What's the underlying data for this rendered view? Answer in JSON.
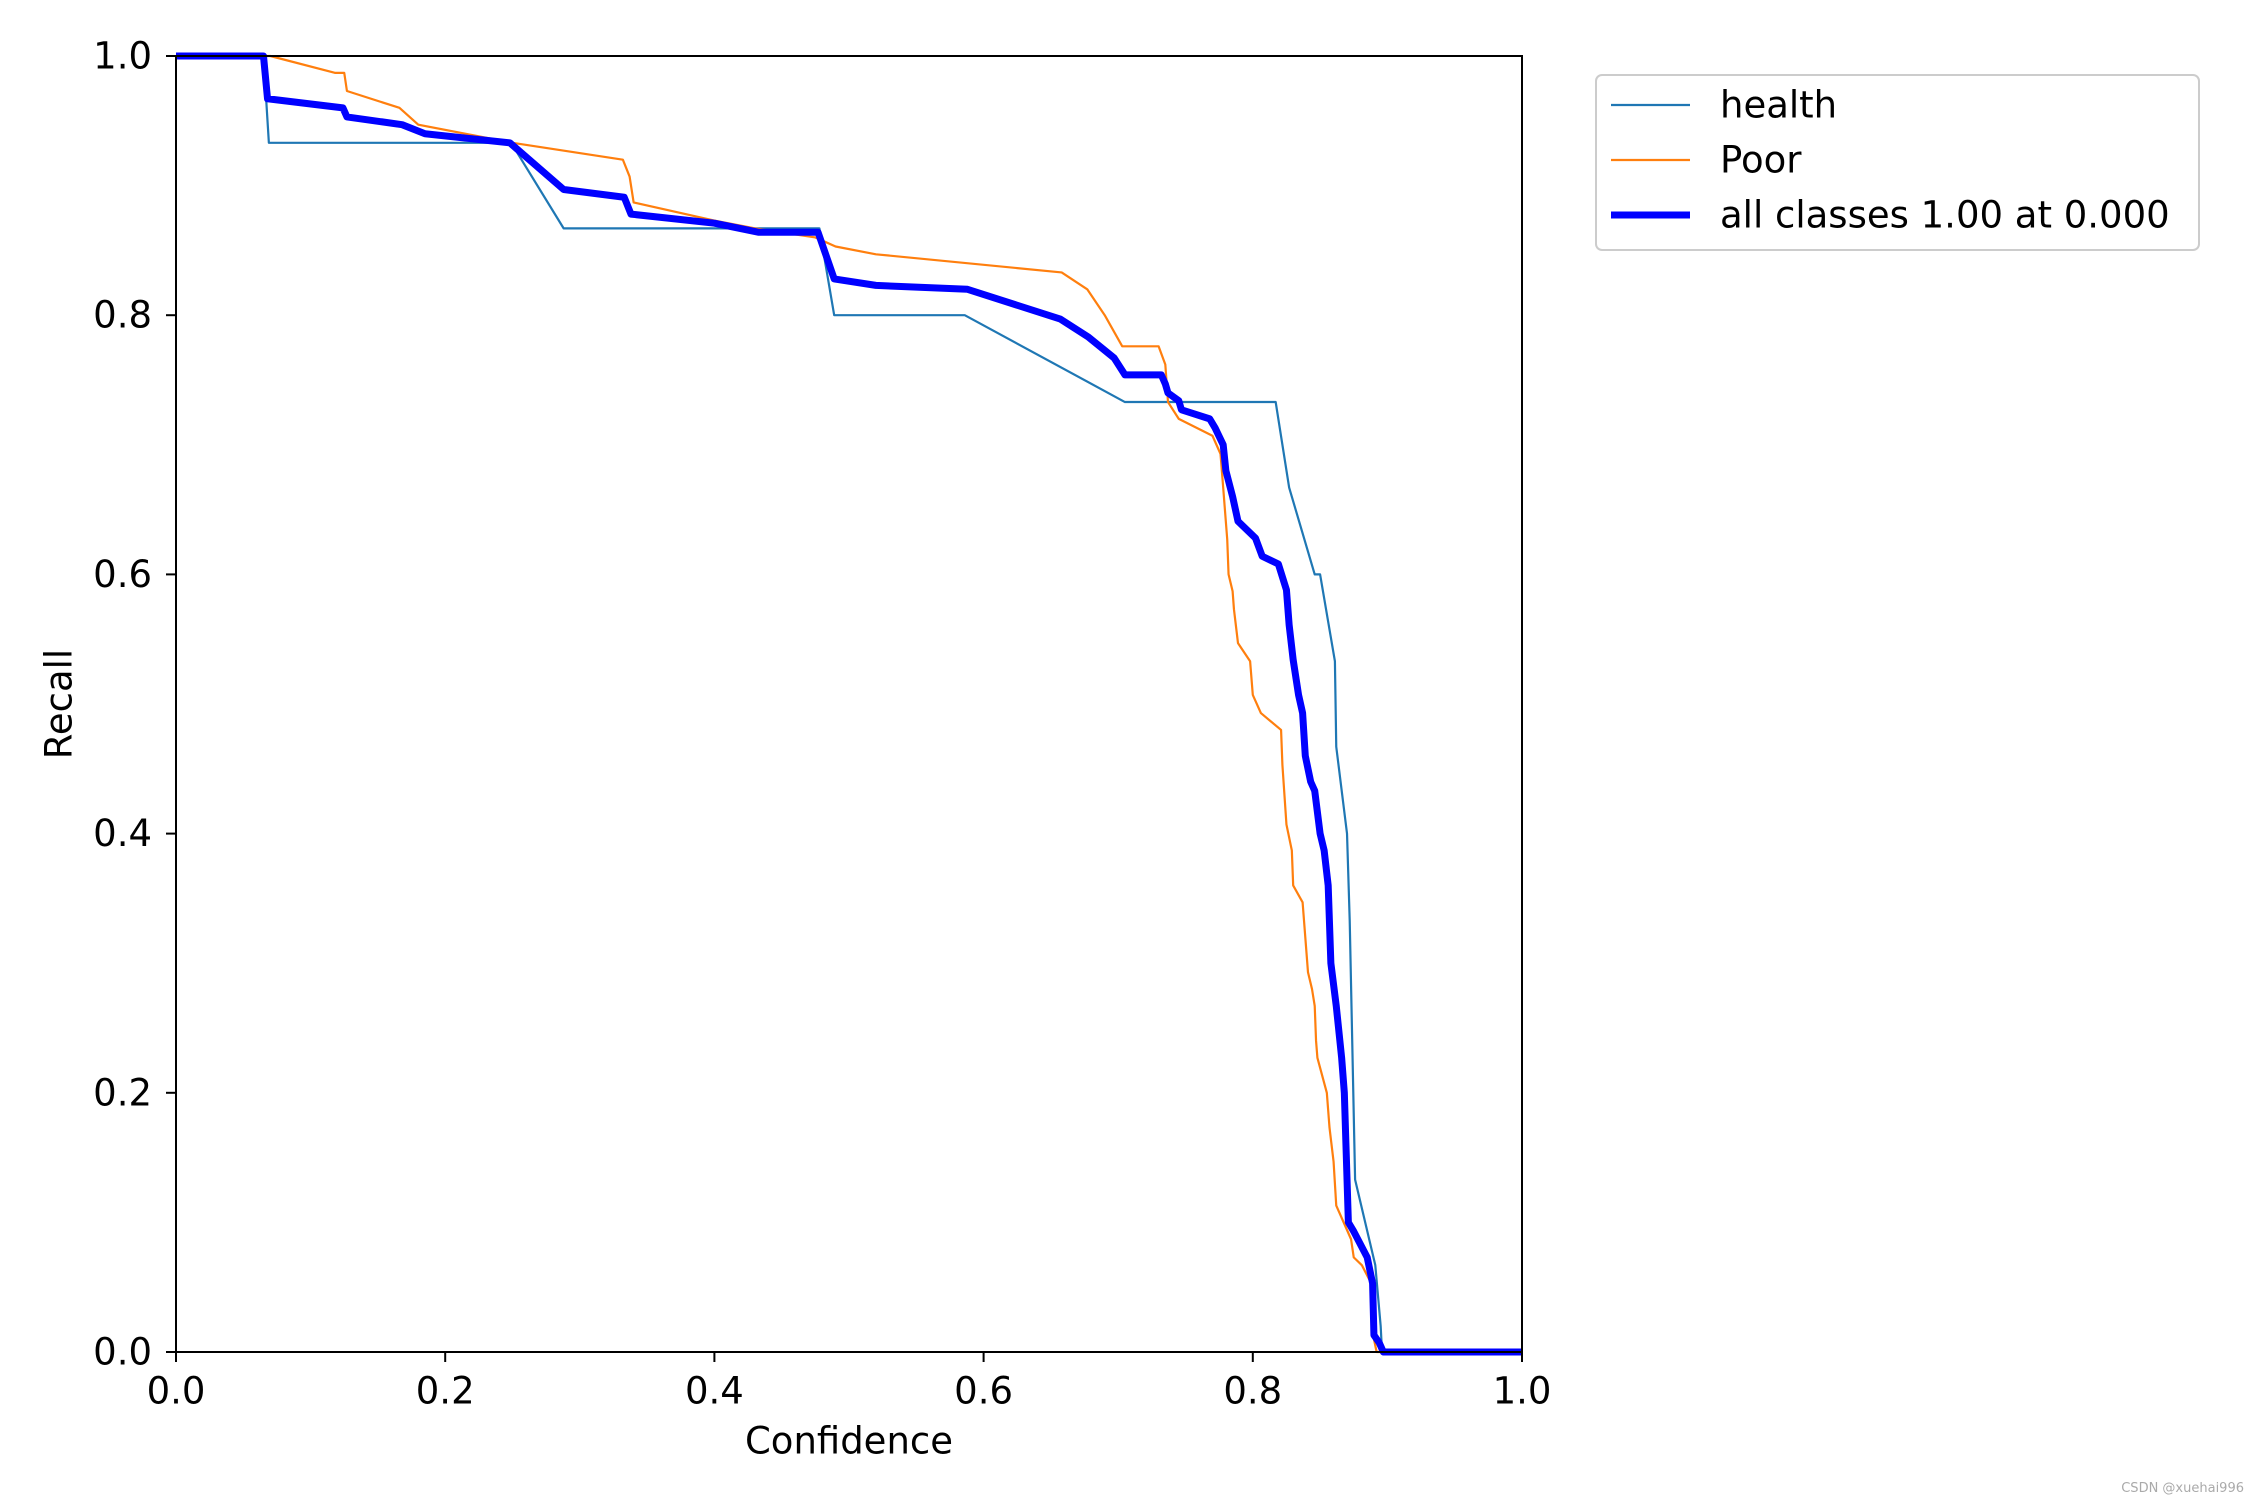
{
  "chart_data": {
    "type": "line",
    "title": "",
    "xlabel": "Confidence",
    "ylabel": "Recall",
    "xlim": [
      0,
      1
    ],
    "ylim": [
      0,
      1
    ],
    "xticks": [
      "0.0",
      "0.2",
      "0.4",
      "0.6",
      "0.8",
      "1.0"
    ],
    "yticks": [
      "0.0",
      "0.2",
      "0.4",
      "0.6",
      "0.8",
      "1.0"
    ],
    "grid": false,
    "legend_position": "outside-top-right",
    "series": [
      {
        "name": "health",
        "color": "#1f77b4",
        "line": "thin",
        "x": [
          0,
          0.065,
          0.069,
          0.249,
          0.288,
          0.478,
          0.489,
          0.586,
          0.705,
          0.817,
          0.827,
          0.846,
          0.85,
          0.861,
          0.862,
          0.87,
          0.872,
          0.876,
          0.891,
          0.895,
          0.896,
          1.0
        ],
        "y": [
          1,
          1,
          0.933,
          0.933,
          0.867,
          0.867,
          0.8,
          0.8,
          0.733,
          0.733,
          0.667,
          0.6,
          0.6,
          0.533,
          0.467,
          0.4,
          0.333,
          0.133,
          0.067,
          0.02,
          0,
          0
        ]
      },
      {
        "name": "Poor",
        "color": "#ff7f0e",
        "line": "thin",
        "x": [
          0,
          0.07,
          0.118,
          0.125,
          0.127,
          0.166,
          0.18,
          0.25,
          0.332,
          0.337,
          0.34,
          0.4,
          0.43,
          0.475,
          0.49,
          0.52,
          0.658,
          0.677,
          0.69,
          0.703,
          0.73,
          0.735,
          0.737,
          0.745,
          0.77,
          0.776,
          0.778,
          0.781,
          0.782,
          0.785,
          0.786,
          0.789,
          0.798,
          0.8,
          0.806,
          0.821,
          0.822,
          0.825,
          0.829,
          0.83,
          0.837,
          0.841,
          0.844,
          0.846,
          0.847,
          0.848,
          0.855,
          0.857,
          0.86,
          0.862,
          0.873,
          0.875,
          0.881,
          0.888,
          0.89,
          0.892,
          1.0
        ],
        "y": [
          1,
          1,
          0.987,
          0.987,
          0.973,
          0.96,
          0.947,
          0.933,
          0.92,
          0.907,
          0.887,
          0.873,
          0.867,
          0.86,
          0.853,
          0.847,
          0.833,
          0.82,
          0.8,
          0.776,
          0.776,
          0.762,
          0.733,
          0.72,
          0.707,
          0.693,
          0.667,
          0.627,
          0.6,
          0.587,
          0.573,
          0.547,
          0.533,
          0.507,
          0.493,
          0.48,
          0.453,
          0.407,
          0.387,
          0.36,
          0.347,
          0.293,
          0.28,
          0.267,
          0.24,
          0.227,
          0.2,
          0.173,
          0.147,
          0.113,
          0.087,
          0.073,
          0.067,
          0.053,
          0.01,
          0,
          0
        ]
      },
      {
        "name": "all classes 1.00 at 0.000",
        "color": "#0000ff",
        "line": "thick",
        "x": [
          0,
          0.065,
          0.068,
          0.124,
          0.127,
          0.168,
          0.185,
          0.248,
          0.288,
          0.333,
          0.338,
          0.4,
          0.433,
          0.477,
          0.489,
          0.52,
          0.588,
          0.657,
          0.678,
          0.697,
          0.705,
          0.732,
          0.735,
          0.737,
          0.745,
          0.747,
          0.768,
          0.772,
          0.778,
          0.78,
          0.785,
          0.789,
          0.802,
          0.807,
          0.819,
          0.825,
          0.827,
          0.83,
          0.834,
          0.837,
          0.839,
          0.843,
          0.846,
          0.85,
          0.853,
          0.856,
          0.858,
          0.862,
          0.866,
          0.868,
          0.871,
          0.875,
          0.885,
          0.889,
          0.89,
          0.894,
          0.897,
          1.0
        ],
        "y": [
          1,
          1,
          0.967,
          0.96,
          0.953,
          0.947,
          0.94,
          0.933,
          0.897,
          0.891,
          0.878,
          0.871,
          0.864,
          0.864,
          0.828,
          0.823,
          0.82,
          0.797,
          0.783,
          0.767,
          0.754,
          0.754,
          0.747,
          0.74,
          0.734,
          0.727,
          0.72,
          0.713,
          0.7,
          0.68,
          0.66,
          0.641,
          0.628,
          0.614,
          0.608,
          0.588,
          0.561,
          0.534,
          0.507,
          0.493,
          0.46,
          0.44,
          0.433,
          0.4,
          0.387,
          0.36,
          0.3,
          0.267,
          0.227,
          0.2,
          0.1,
          0.093,
          0.073,
          0.053,
          0.013,
          0.007,
          0,
          0
        ]
      }
    ]
  },
  "watermark": "CSDN @xuehai996"
}
